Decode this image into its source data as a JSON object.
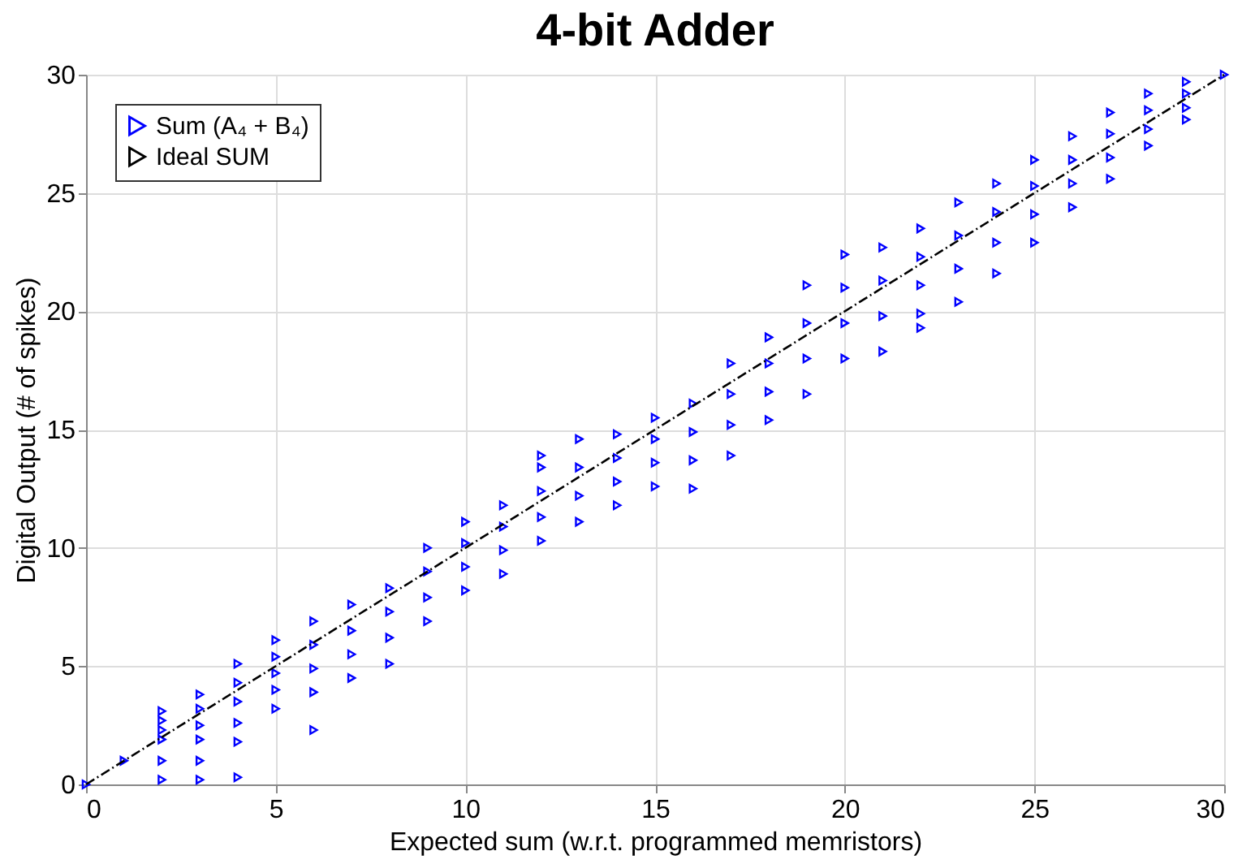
{
  "chart_data": {
    "type": "scatter",
    "title": "4-bit Adder",
    "xlabel": "Expected sum (w.r.t. programmed memristors)",
    "ylabel": "Digital Output (# of spikes)",
    "xlim": [
      0,
      30
    ],
    "ylim": [
      0,
      30
    ],
    "xticks": [
      0,
      5,
      10,
      15,
      20,
      25,
      30
    ],
    "yticks": [
      0,
      5,
      10,
      15,
      20,
      25,
      30
    ],
    "grid": true,
    "legend": "top left",
    "series": [
      {
        "name": "Sum (A₄ + B₄)",
        "marker": "triangle",
        "color": "#0000ff",
        "x": [
          0,
          1,
          2,
          2,
          2,
          2,
          2,
          2,
          3,
          3,
          3,
          3,
          3,
          3,
          4,
          4,
          4,
          4,
          4,
          4,
          5,
          5,
          5,
          5,
          5,
          6,
          6,
          6,
          6,
          6,
          7,
          7,
          7,
          7,
          8,
          8,
          8,
          8,
          9,
          9,
          9,
          9,
          10,
          10,
          10,
          10,
          11,
          11,
          11,
          11,
          12,
          12,
          12,
          12,
          12,
          13,
          13,
          13,
          13,
          14,
          14,
          14,
          14,
          15,
          15,
          15,
          15,
          16,
          16,
          16,
          16,
          17,
          17,
          17,
          17,
          18,
          18,
          18,
          18,
          19,
          19,
          19,
          19,
          20,
          20,
          20,
          20,
          21,
          21,
          21,
          21,
          22,
          22,
          22,
          22,
          22,
          23,
          23,
          23,
          23,
          24,
          24,
          24,
          24,
          25,
          25,
          25,
          25,
          26,
          26,
          26,
          26,
          27,
          27,
          27,
          27,
          28,
          28,
          28,
          28,
          29,
          29,
          29,
          29,
          30
        ],
        "values": [
          0,
          1,
          0.2,
          1.0,
          1.9,
          2.3,
          2.7,
          3.1,
          0.2,
          1.0,
          1.9,
          2.5,
          3.2,
          3.8,
          0.3,
          1.8,
          2.6,
          3.5,
          4.3,
          5.1,
          3.2,
          4.0,
          4.7,
          5.4,
          6.1,
          2.3,
          3.9,
          4.9,
          5.9,
          6.9,
          4.5,
          5.5,
          6.5,
          7.6,
          5.1,
          6.2,
          7.3,
          8.3,
          6.9,
          7.9,
          9.0,
          10.0,
          8.2,
          9.2,
          10.2,
          11.1,
          8.9,
          9.9,
          10.9,
          11.8,
          10.3,
          11.3,
          12.4,
          13.4,
          13.9,
          11.1,
          12.2,
          13.4,
          14.6,
          11.8,
          12.8,
          13.8,
          14.8,
          12.6,
          13.6,
          14.6,
          15.5,
          12.5,
          13.7,
          14.9,
          16.1,
          13.9,
          15.2,
          16.5,
          17.8,
          15.4,
          16.6,
          17.8,
          18.9,
          16.5,
          18.0,
          19.5,
          21.1,
          18.0,
          19.5,
          21.0,
          22.4,
          18.3,
          19.8,
          21.3,
          22.7,
          19.3,
          19.9,
          21.1,
          22.3,
          23.5,
          20.4,
          21.8,
          23.2,
          24.6,
          21.6,
          22.9,
          24.2,
          25.4,
          22.9,
          24.1,
          25.3,
          26.4,
          24.4,
          25.4,
          26.4,
          27.4,
          25.6,
          26.5,
          27.5,
          28.4,
          27.0,
          27.7,
          28.5,
          29.2,
          28.1,
          28.6,
          29.2,
          29.7,
          30
        ]
      },
      {
        "name": "Ideal SUM",
        "type": "line",
        "line_style": "dashed",
        "color": "#000000",
        "x": [
          0,
          30
        ],
        "values": [
          0,
          30
        ]
      }
    ]
  }
}
